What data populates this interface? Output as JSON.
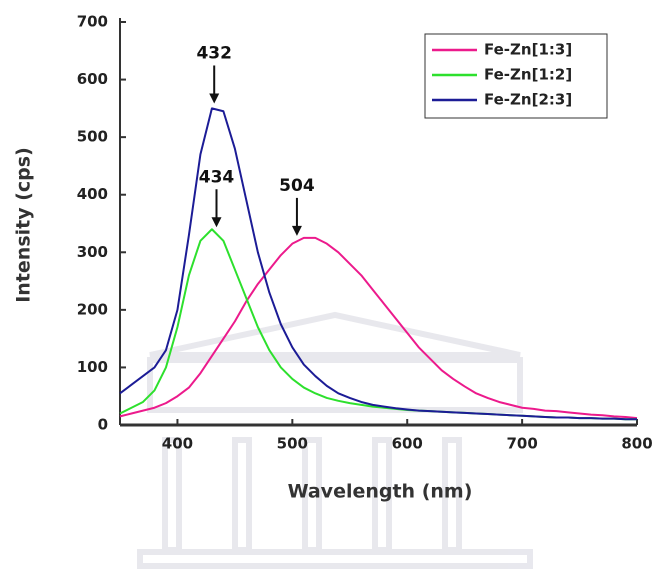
{
  "chart_data": {
    "type": "line",
    "x_label": "Wavelength (nm)",
    "y_label": "Intensity (cps)",
    "x": [
      350,
      360,
      370,
      380,
      390,
      400,
      410,
      420,
      430,
      440,
      450,
      460,
      470,
      480,
      490,
      500,
      510,
      520,
      530,
      540,
      550,
      560,
      570,
      580,
      590,
      600,
      610,
      620,
      630,
      640,
      650,
      660,
      670,
      680,
      690,
      700,
      710,
      720,
      730,
      740,
      750,
      760,
      770,
      780,
      790,
      800
    ],
    "series": [
      {
        "name": "Fe-Zn[1:3]",
        "color": "#ec1a8c",
        "values": [
          15,
          20,
          25,
          30,
          38,
          50,
          65,
          90,
          120,
          150,
          180,
          215,
          245,
          270,
          295,
          315,
          325,
          325,
          315,
          300,
          280,
          260,
          235,
          210,
          185,
          160,
          135,
          115,
          95,
          80,
          67,
          55,
          47,
          40,
          35,
          30,
          28,
          25,
          24,
          22,
          20,
          18,
          17,
          15,
          14,
          12
        ]
      },
      {
        "name": "Fe-Zn[1:2]",
        "color": "#2de02d",
        "values": [
          20,
          30,
          40,
          60,
          100,
          170,
          260,
          320,
          340,
          320,
          270,
          220,
          170,
          130,
          100,
          80,
          65,
          55,
          47,
          42,
          38,
          35,
          32,
          30,
          28,
          26,
          25,
          24,
          23,
          22,
          21,
          20,
          19,
          18,
          17,
          16,
          15,
          14,
          13,
          13,
          12,
          12,
          11,
          11,
          10,
          10
        ]
      },
      {
        "name": "Fe-Zn[2:3]",
        "color": "#1c1c96",
        "values": [
          55,
          70,
          85,
          100,
          130,
          200,
          330,
          470,
          550,
          545,
          480,
          390,
          300,
          230,
          175,
          135,
          105,
          85,
          68,
          55,
          47,
          40,
          35,
          32,
          29,
          27,
          25,
          24,
          23,
          22,
          21,
          20,
          19,
          18,
          17,
          16,
          15,
          14,
          13,
          13,
          12,
          12,
          11,
          11,
          10,
          10
        ]
      }
    ],
    "annotations": [
      {
        "label": "432",
        "x": 432,
        "y": 555
      },
      {
        "label": "434",
        "x": 434,
        "y": 340
      },
      {
        "label": "504",
        "x": 504,
        "y": 325
      }
    ],
    "xlim": [
      350,
      800
    ],
    "xticks": [
      400,
      500,
      600,
      700,
      800
    ],
    "ylim": [
      0,
      700
    ],
    "yticks": [
      0,
      100,
      200,
      300,
      400,
      500,
      600,
      700
    ],
    "legend": "upper right"
  }
}
